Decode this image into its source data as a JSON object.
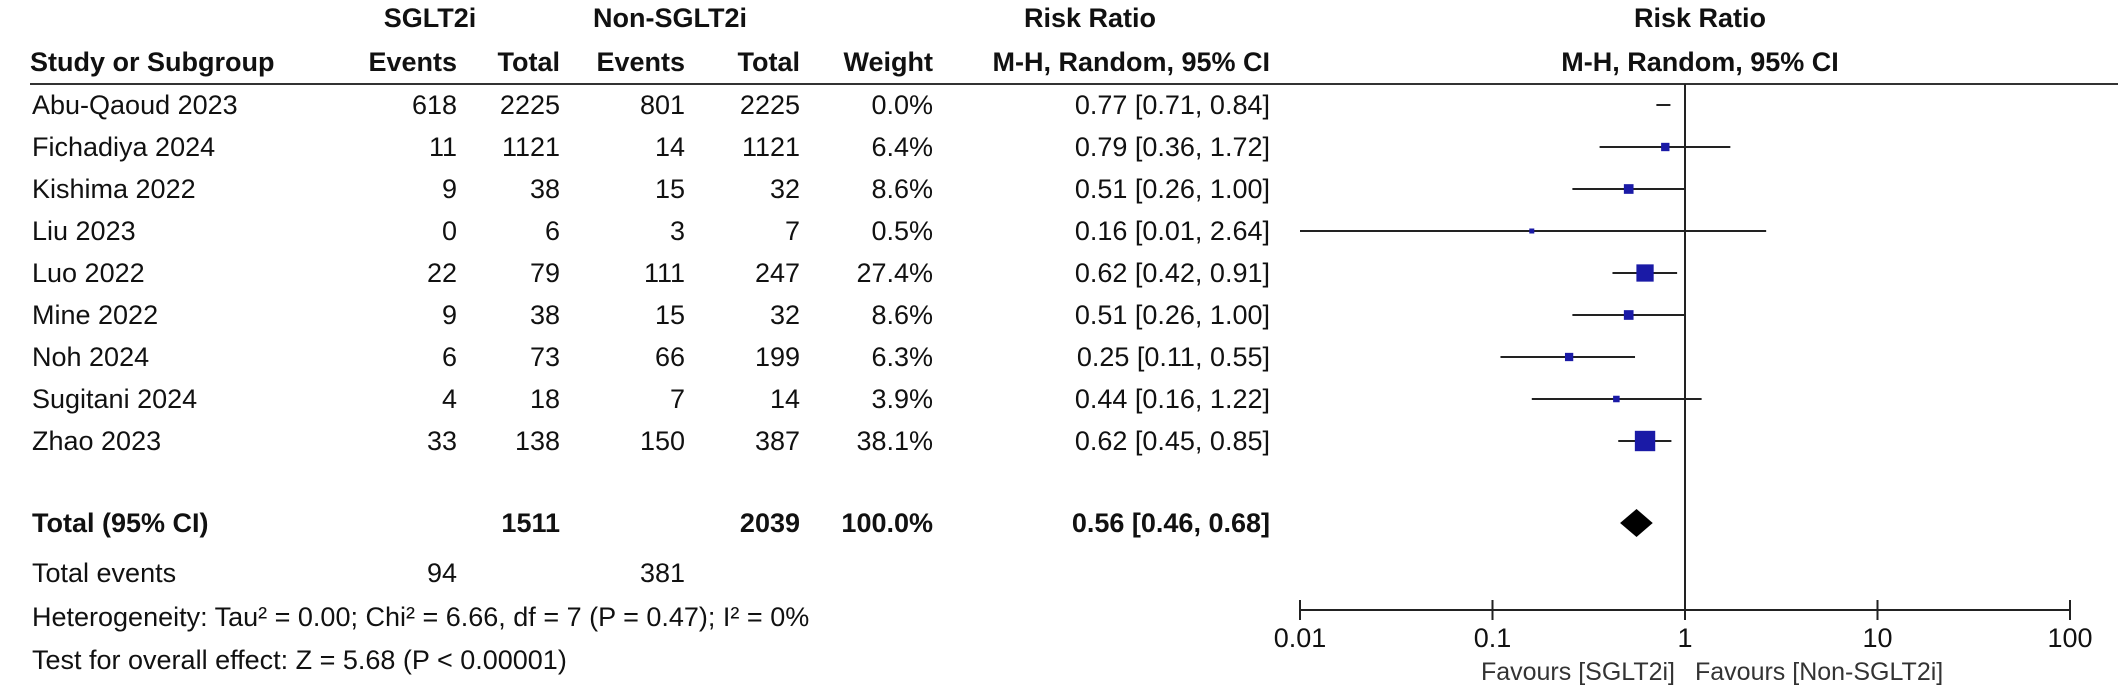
{
  "header": {
    "group1": "SGLT2i",
    "group2": "Non-SGLT2i",
    "rr_table": "Risk Ratio",
    "rr_plot": "Risk Ratio",
    "col_study": "Study or Subgroup",
    "col_events1": "Events",
    "col_total1": "Total",
    "col_events2": "Events",
    "col_total2": "Total",
    "col_weight": "Weight",
    "col_method": "M-H, Random, 95% CI",
    "plot_method": "M-H, Random, 95% CI"
  },
  "studies": [
    {
      "name": "Abu-Qaoud 2023",
      "e1": "618",
      "n1": "2225",
      "e2": "801",
      "n2": "2225",
      "weight": "0.0%",
      "ci_text": "0.77 [0.71, 0.84]"
    },
    {
      "name": "Fichadiya 2024",
      "e1": "11",
      "n1": "1121",
      "e2": "14",
      "n2": "1121",
      "weight": "6.4%",
      "ci_text": "0.79 [0.36, 1.72]"
    },
    {
      "name": "Kishima 2022",
      "e1": "9",
      "n1": "38",
      "e2": "15",
      "n2": "32",
      "weight": "8.6%",
      "ci_text": "0.51 [0.26, 1.00]"
    },
    {
      "name": "Liu 2023",
      "e1": "0",
      "n1": "6",
      "e2": "3",
      "n2": "7",
      "weight": "0.5%",
      "ci_text": "0.16 [0.01, 2.64]"
    },
    {
      "name": "Luo 2022",
      "e1": "22",
      "n1": "79",
      "e2": "111",
      "n2": "247",
      "weight": "27.4%",
      "ci_text": "0.62 [0.42, 0.91]"
    },
    {
      "name": "Mine 2022",
      "e1": "9",
      "n1": "38",
      "e2": "15",
      "n2": "32",
      "weight": "8.6%",
      "ci_text": "0.51 [0.26, 1.00]"
    },
    {
      "name": "Noh 2024",
      "e1": "6",
      "n1": "73",
      "e2": "66",
      "n2": "199",
      "weight": "6.3%",
      "ci_text": "0.25 [0.11, 0.55]"
    },
    {
      "name": "Sugitani 2024",
      "e1": "4",
      "n1": "18",
      "e2": "7",
      "n2": "14",
      "weight": "3.9%",
      "ci_text": "0.44 [0.16, 1.22]"
    },
    {
      "name": "Zhao 2023",
      "e1": "33",
      "n1": "138",
      "e2": "150",
      "n2": "387",
      "weight": "38.1%",
      "ci_text": "0.62 [0.45, 0.85]"
    }
  ],
  "total": {
    "label": "Total (95% CI)",
    "n1": "1511",
    "n2": "2039",
    "weight": "100.0%",
    "ci_text": "0.56 [0.46, 0.68]",
    "events_label": "Total events",
    "events1": "94",
    "events2": "381"
  },
  "heterogeneity": "Heterogeneity: Tau² = 0.00; Chi² = 6.66, df = 7 (P = 0.47); I² = 0%",
  "overall_effect": "Test for overall effect: Z = 5.68 (P < 0.00001)",
  "axis": {
    "ticks": [
      "0.01",
      "0.1",
      "1",
      "10",
      "100"
    ],
    "favours_left": "Favours [SGLT2i]",
    "favours_right": "Favours [Non-SGLT2i]"
  },
  "colors": {
    "marker": "#1a1aa6",
    "line": "#222222",
    "diamond": "#000000"
  },
  "chart_data": {
    "type": "forest",
    "scale": "log",
    "xlim": [
      0.01,
      100
    ],
    "null_line": 1,
    "studies": [
      {
        "name": "Abu-Qaoud 2023",
        "rr": 0.77,
        "lo": 0.71,
        "hi": 0.84,
        "weight": 0.0
      },
      {
        "name": "Fichadiya 2024",
        "rr": 0.79,
        "lo": 0.36,
        "hi": 1.72,
        "weight": 6.4
      },
      {
        "name": "Kishima 2022",
        "rr": 0.51,
        "lo": 0.26,
        "hi": 1.0,
        "weight": 8.6
      },
      {
        "name": "Liu 2023",
        "rr": 0.16,
        "lo": 0.01,
        "hi": 2.64,
        "weight": 0.5
      },
      {
        "name": "Luo 2022",
        "rr": 0.62,
        "lo": 0.42,
        "hi": 0.91,
        "weight": 27.4
      },
      {
        "name": "Mine 2022",
        "rr": 0.51,
        "lo": 0.26,
        "hi": 1.0,
        "weight": 8.6
      },
      {
        "name": "Noh 2024",
        "rr": 0.25,
        "lo": 0.11,
        "hi": 0.55,
        "weight": 6.3
      },
      {
        "name": "Sugitani 2024",
        "rr": 0.44,
        "lo": 0.16,
        "hi": 1.22,
        "weight": 3.9
      },
      {
        "name": "Zhao 2023",
        "rr": 0.62,
        "lo": 0.45,
        "hi": 0.85,
        "weight": 38.1
      }
    ],
    "pooled": {
      "rr": 0.56,
      "lo": 0.46,
      "hi": 0.68
    }
  }
}
